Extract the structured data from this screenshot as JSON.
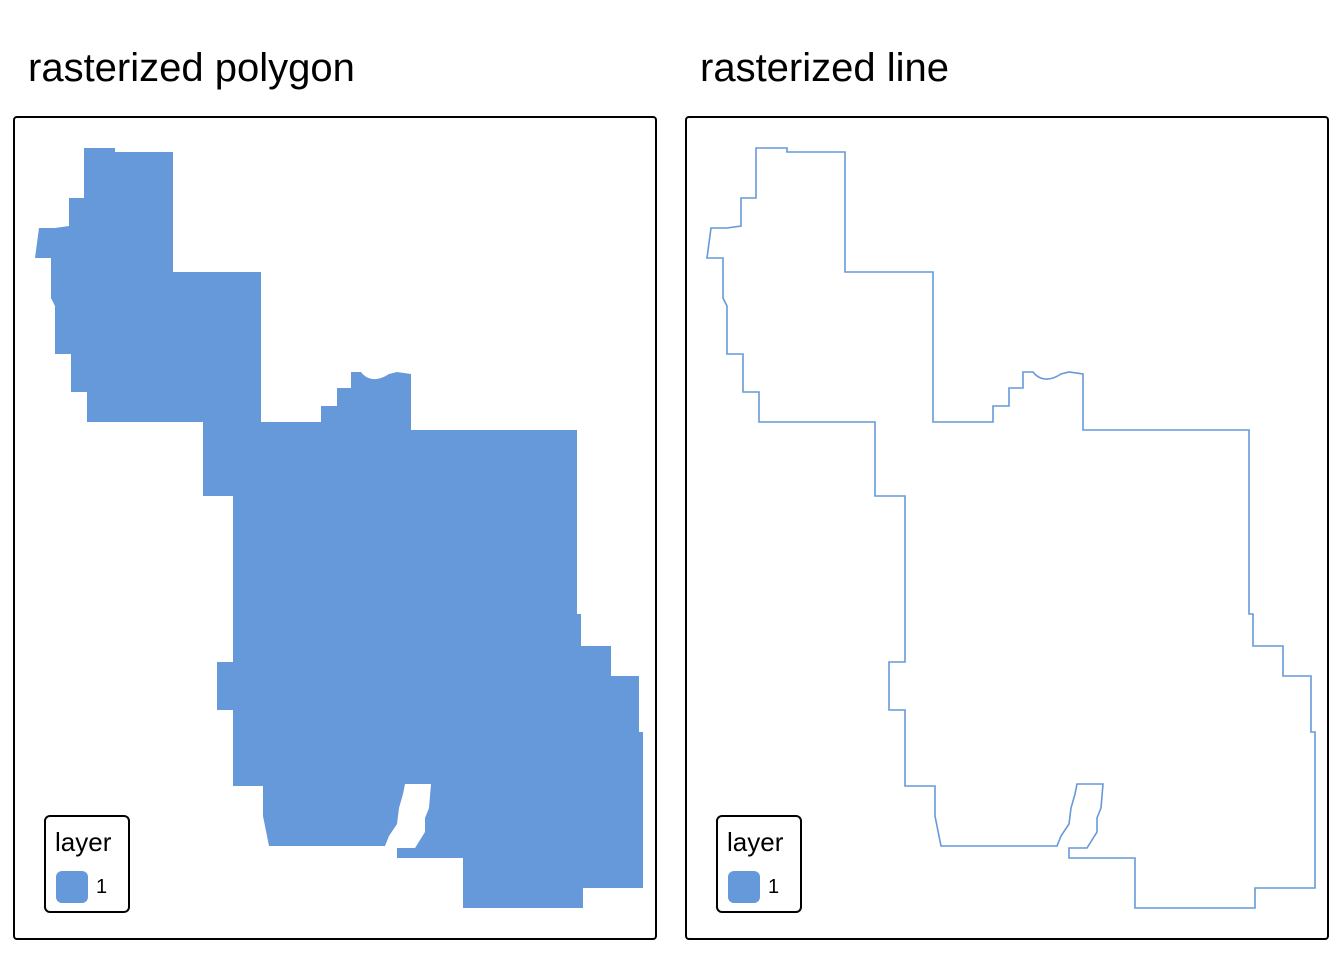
{
  "panels": [
    {
      "title": "rasterized polygon",
      "legend": {
        "title": "layer",
        "label": "1"
      }
    },
    {
      "title": "rasterized line",
      "legend": {
        "title": "layer",
        "label": "1"
      }
    }
  ],
  "colors": {
    "fill": "#6699d9",
    "frame": "#000000",
    "background": "#ffffff"
  }
}
